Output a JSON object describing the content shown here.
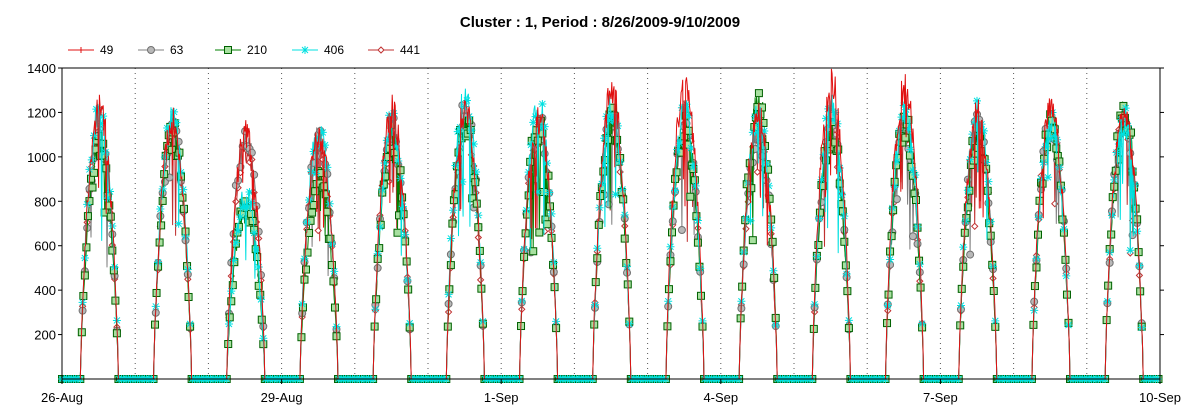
{
  "chart_data": {
    "type": "line",
    "title": "Cluster : 1, Period : 8/26/2009-9/10/2009",
    "xlabel": "",
    "ylabel": "",
    "x_start": "2009-08-26",
    "x_end": "2009-09-10",
    "ylim": [
      0,
      1400
    ],
    "y_ticks": [
      200,
      400,
      600,
      800,
      1000,
      1200,
      1400
    ],
    "x_ticks": [
      "26-Aug",
      "29-Aug",
      "1-Sep",
      "4-Sep",
      "7-Sep",
      "10-Sep"
    ],
    "grid": "vertical dotted at day boundaries",
    "legend_position": "top-left",
    "series": [
      {
        "name": "49",
        "color": "#e01010",
        "marker": "plus"
      },
      {
        "name": "63",
        "color": "#808080",
        "marker": "circle"
      },
      {
        "name": "210",
        "color": "#008000",
        "marker": "square"
      },
      {
        "name": "406",
        "color": "#00e0e0",
        "marker": "star"
      },
      {
        "name": "441",
        "color": "#c03030",
        "marker": "diamond"
      }
    ],
    "daily_peaks": [
      {
        "date": "2009-08-26",
        "s49": 1290,
        "s63": 1150,
        "s210": 1100,
        "s406": 1260,
        "s441": 1150
      },
      {
        "date": "2009-08-27",
        "s49": 1230,
        "s63": 1180,
        "s210": 1170,
        "s406": 1250,
        "s441": 1150
      },
      {
        "date": "2009-08-28",
        "s49": 1170,
        "s63": 1160,
        "s210": 820,
        "s406": 880,
        "s441": 1100
      },
      {
        "date": "2009-08-29",
        "s49": 1170,
        "s63": 1150,
        "s210": 950,
        "s406": 1190,
        "s441": 1100
      },
      {
        "date": "2009-08-30",
        "s49": 1280,
        "s63": 1200,
        "s210": 1150,
        "s406": 1220,
        "s441": 1180
      },
      {
        "date": "2009-08-31",
        "s49": 1290,
        "s63": 1270,
        "s210": 1230,
        "s406": 1340,
        "s441": 1190
      },
      {
        "date": "2009-09-01",
        "s49": 1250,
        "s63": 1230,
        "s210": 1220,
        "s406": 1290,
        "s441": 1200
      },
      {
        "date": "2009-09-02",
        "s49": 1370,
        "s63": 1260,
        "s210": 1240,
        "s406": 1300,
        "s441": 1230
      },
      {
        "date": "2009-09-03",
        "s49": 1390,
        "s63": 1200,
        "s210": 1200,
        "s406": 1260,
        "s441": 1190
      },
      {
        "date": "2009-09-04",
        "s49": 1260,
        "s63": 1180,
        "s210": 1320,
        "s406": 1250,
        "s441": 1200
      },
      {
        "date": "2009-09-05",
        "s49": 1420,
        "s63": 1180,
        "s210": 1180,
        "s406": 1290,
        "s441": 1190
      },
      {
        "date": "2009-09-06",
        "s49": 1400,
        "s63": 1180,
        "s210": 1220,
        "s406": 1290,
        "s441": 1200
      },
      {
        "date": "2009-09-07",
        "s49": 1280,
        "s63": 1200,
        "s210": 1160,
        "s406": 1260,
        "s441": 1200
      },
      {
        "date": "2009-09-08",
        "s49": 1280,
        "s63": 1230,
        "s210": 1200,
        "s406": 1230,
        "s441": 1230
      },
      {
        "date": "2009-09-09",
        "s49": 1270,
        "s63": 1230,
        "s210": 1260,
        "s406": 1240,
        "s441": 1230
      }
    ]
  }
}
